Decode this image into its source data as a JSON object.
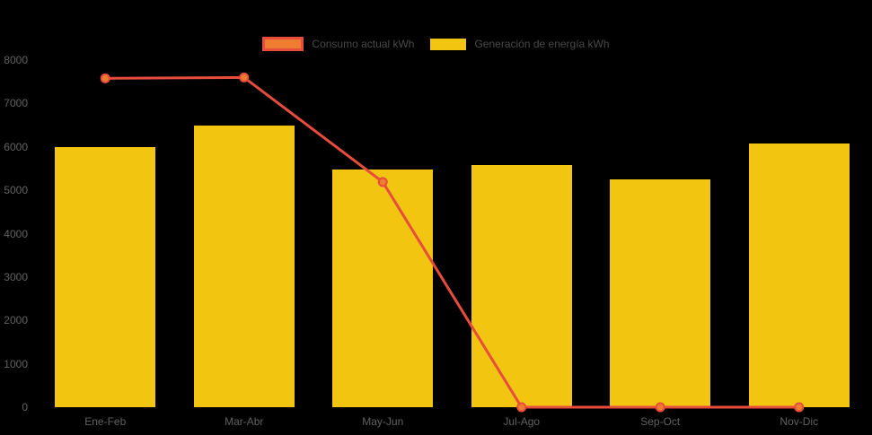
{
  "chart_data": {
    "type": "combo",
    "title": "",
    "xlabel": "",
    "ylabel": "",
    "categories": [
      "Ene-Feb",
      "Mar-Abr",
      "May-Jun",
      "Jul-Ago",
      "Sep-Oct",
      "Nov-Dic"
    ],
    "series": [
      {
        "name": "Consumo actual kWh",
        "type": "line",
        "values": [
          7580,
          7600,
          5190,
          0,
          0,
          0
        ],
        "line_color": "#E74C3C",
        "point_fill": "#EE7D2F"
      },
      {
        "name": "Generación de energía kWh",
        "type": "bar",
        "values": [
          6000,
          6490,
          5480,
          5580,
          5250,
          6080
        ],
        "color": "#F2C511"
      }
    ],
    "ylim": [
      0,
      8000
    ],
    "ytick_step": 1000,
    "ytick_labels": [
      "0",
      "1000",
      "2000",
      "3000",
      "4000",
      "5000",
      "6000",
      "7000",
      "8000"
    ],
    "grid": false,
    "legend_position": "top-center",
    "colors": {
      "background": "#000000",
      "axis_text": "#616161",
      "legend_text": "#4A4A4A"
    }
  }
}
